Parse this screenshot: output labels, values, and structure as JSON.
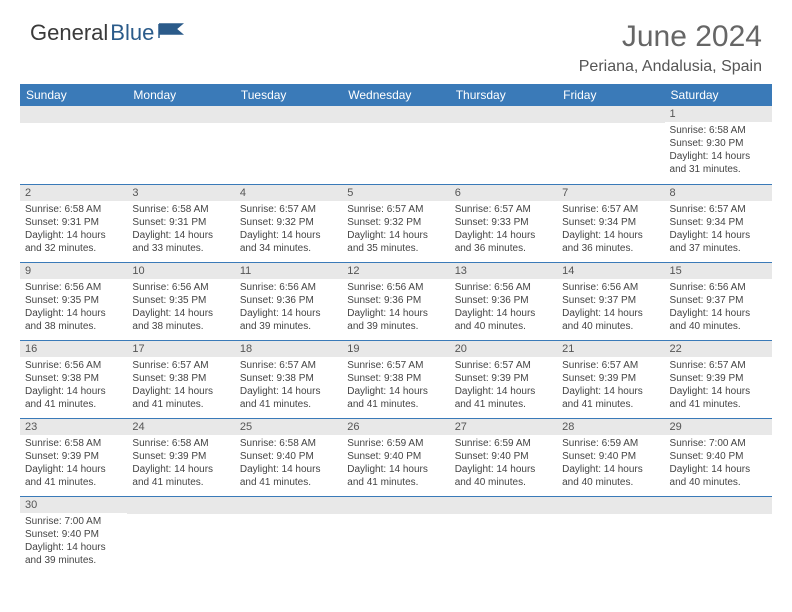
{
  "logo": {
    "text1": "General",
    "text2": "Blue"
  },
  "title": "June 2024",
  "location": "Periana, Andalusia, Spain",
  "colors": {
    "header_bg": "#3a7ab8",
    "header_text": "#ffffff",
    "daynum_bg": "#e8e8e8",
    "border": "#3a7ab8",
    "logo_dark": "#3a3a3a",
    "logo_blue": "#2b5b8a",
    "title_color": "#666666"
  },
  "day_headers": [
    "Sunday",
    "Monday",
    "Tuesday",
    "Wednesday",
    "Thursday",
    "Friday",
    "Saturday"
  ],
  "weeks": [
    [
      null,
      null,
      null,
      null,
      null,
      null,
      {
        "n": "1",
        "sr": "6:58 AM",
        "ss": "9:30 PM",
        "dl": "14 hours and 31 minutes."
      }
    ],
    [
      {
        "n": "2",
        "sr": "6:58 AM",
        "ss": "9:31 PM",
        "dl": "14 hours and 32 minutes."
      },
      {
        "n": "3",
        "sr": "6:58 AM",
        "ss": "9:31 PM",
        "dl": "14 hours and 33 minutes."
      },
      {
        "n": "4",
        "sr": "6:57 AM",
        "ss": "9:32 PM",
        "dl": "14 hours and 34 minutes."
      },
      {
        "n": "5",
        "sr": "6:57 AM",
        "ss": "9:32 PM",
        "dl": "14 hours and 35 minutes."
      },
      {
        "n": "6",
        "sr": "6:57 AM",
        "ss": "9:33 PM",
        "dl": "14 hours and 36 minutes."
      },
      {
        "n": "7",
        "sr": "6:57 AM",
        "ss": "9:34 PM",
        "dl": "14 hours and 36 minutes."
      },
      {
        "n": "8",
        "sr": "6:57 AM",
        "ss": "9:34 PM",
        "dl": "14 hours and 37 minutes."
      }
    ],
    [
      {
        "n": "9",
        "sr": "6:56 AM",
        "ss": "9:35 PM",
        "dl": "14 hours and 38 minutes."
      },
      {
        "n": "10",
        "sr": "6:56 AM",
        "ss": "9:35 PM",
        "dl": "14 hours and 38 minutes."
      },
      {
        "n": "11",
        "sr": "6:56 AM",
        "ss": "9:36 PM",
        "dl": "14 hours and 39 minutes."
      },
      {
        "n": "12",
        "sr": "6:56 AM",
        "ss": "9:36 PM",
        "dl": "14 hours and 39 minutes."
      },
      {
        "n": "13",
        "sr": "6:56 AM",
        "ss": "9:36 PM",
        "dl": "14 hours and 40 minutes."
      },
      {
        "n": "14",
        "sr": "6:56 AM",
        "ss": "9:37 PM",
        "dl": "14 hours and 40 minutes."
      },
      {
        "n": "15",
        "sr": "6:56 AM",
        "ss": "9:37 PM",
        "dl": "14 hours and 40 minutes."
      }
    ],
    [
      {
        "n": "16",
        "sr": "6:56 AM",
        "ss": "9:38 PM",
        "dl": "14 hours and 41 minutes."
      },
      {
        "n": "17",
        "sr": "6:57 AM",
        "ss": "9:38 PM",
        "dl": "14 hours and 41 minutes."
      },
      {
        "n": "18",
        "sr": "6:57 AM",
        "ss": "9:38 PM",
        "dl": "14 hours and 41 minutes."
      },
      {
        "n": "19",
        "sr": "6:57 AM",
        "ss": "9:38 PM",
        "dl": "14 hours and 41 minutes."
      },
      {
        "n": "20",
        "sr": "6:57 AM",
        "ss": "9:39 PM",
        "dl": "14 hours and 41 minutes."
      },
      {
        "n": "21",
        "sr": "6:57 AM",
        "ss": "9:39 PM",
        "dl": "14 hours and 41 minutes."
      },
      {
        "n": "22",
        "sr": "6:57 AM",
        "ss": "9:39 PM",
        "dl": "14 hours and 41 minutes."
      }
    ],
    [
      {
        "n": "23",
        "sr": "6:58 AM",
        "ss": "9:39 PM",
        "dl": "14 hours and 41 minutes."
      },
      {
        "n": "24",
        "sr": "6:58 AM",
        "ss": "9:39 PM",
        "dl": "14 hours and 41 minutes."
      },
      {
        "n": "25",
        "sr": "6:58 AM",
        "ss": "9:40 PM",
        "dl": "14 hours and 41 minutes."
      },
      {
        "n": "26",
        "sr": "6:59 AM",
        "ss": "9:40 PM",
        "dl": "14 hours and 41 minutes."
      },
      {
        "n": "27",
        "sr": "6:59 AM",
        "ss": "9:40 PM",
        "dl": "14 hours and 40 minutes."
      },
      {
        "n": "28",
        "sr": "6:59 AM",
        "ss": "9:40 PM",
        "dl": "14 hours and 40 minutes."
      },
      {
        "n": "29",
        "sr": "7:00 AM",
        "ss": "9:40 PM",
        "dl": "14 hours and 40 minutes."
      }
    ],
    [
      {
        "n": "30",
        "sr": "7:00 AM",
        "ss": "9:40 PM",
        "dl": "14 hours and 39 minutes."
      },
      null,
      null,
      null,
      null,
      null,
      null
    ]
  ],
  "labels": {
    "sunrise": "Sunrise:",
    "sunset": "Sunset:",
    "daylight": "Daylight:"
  }
}
